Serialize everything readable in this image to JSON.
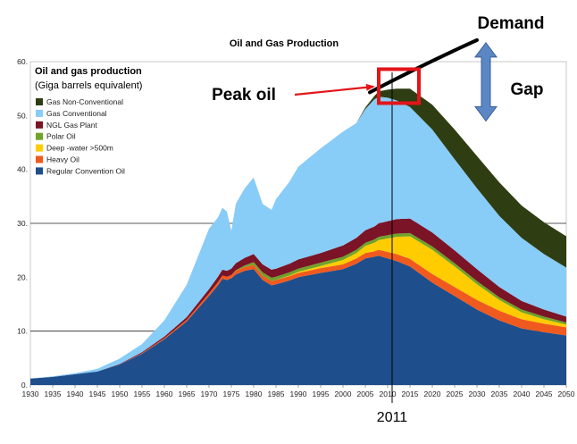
{
  "chart_data": {
    "type": "area",
    "title": "Oil and Gas Production",
    "legend_title": "Oil and gas production",
    "legend_subtitle": "(Giga barrels equivalent)",
    "legend_placement": "top-left",
    "xlim": [
      1930,
      2050
    ],
    "ylim": [
      0,
      60
    ],
    "x_ticks": [
      1930,
      1935,
      1940,
      1945,
      1950,
      1955,
      1960,
      1965,
      1970,
      1975,
      1980,
      1985,
      1990,
      1995,
      2000,
      2005,
      2010,
      2015,
      2020,
      2025,
      2030,
      2035,
      2040,
      2045,
      2050
    ],
    "y_ticks": [
      0,
      10,
      20,
      30,
      40,
      50,
      60
    ],
    "y_tick_labels": [
      "0.",
      "10.",
      "20.",
      "30.",
      "40.",
      "50.",
      "60."
    ],
    "grid_lines_y": [
      10,
      30
    ],
    "x": [
      1930,
      1935,
      1940,
      1945,
      1950,
      1955,
      1960,
      1965,
      1970,
      1972,
      1973,
      1974,
      1975,
      1976,
      1978,
      1980,
      1982,
      1984,
      1985,
      1988,
      1990,
      1995,
      2000,
      2003,
      2005,
      2007,
      2008,
      2010,
      2012,
      2015,
      2020,
      2025,
      2030,
      2035,
      2040,
      2045,
      2050
    ],
    "stack_order": [
      "Regular Convention Oil",
      "Heavy Oil",
      "Deep -water >500m",
      "Polar Oil",
      "NGL Gas Plant",
      "Gas Conventional",
      "Gas Non-Conventional"
    ],
    "series": [
      {
        "name": "Regular Convention Oil",
        "color": "#1f4e8c",
        "values": [
          1.2,
          1.5,
          2.0,
          2.5,
          3.8,
          5.8,
          8.5,
          11.8,
          16.5,
          18.5,
          19.7,
          19.5,
          19.8,
          20.5,
          21.2,
          21.5,
          19.5,
          18.5,
          18.7,
          19.4,
          20.0,
          20.8,
          21.5,
          22.5,
          23.5,
          23.8,
          24.0,
          23.5,
          23.0,
          22.0,
          19.0,
          16.5,
          14.0,
          12.0,
          10.5,
          9.8,
          9.2
        ]
      },
      {
        "name": "Heavy Oil",
        "color": "#f05a1e",
        "values": [
          0,
          0,
          0,
          0,
          0,
          0.1,
          0.2,
          0.3,
          0.5,
          0.6,
          0.6,
          0.6,
          0.6,
          0.7,
          0.7,
          0.8,
          0.8,
          0.8,
          0.8,
          0.8,
          0.8,
          0.9,
          0.9,
          1.0,
          1.0,
          1.0,
          1.1,
          1.2,
          1.3,
          1.4,
          1.6,
          1.7,
          1.8,
          1.8,
          1.7,
          1.6,
          1.5
        ]
      },
      {
        "name": "Deep -water >500m",
        "color": "#ffcc00",
        "values": [
          0,
          0,
          0,
          0,
          0,
          0,
          0,
          0,
          0,
          0,
          0,
          0,
          0,
          0,
          0,
          0,
          0,
          0,
          0,
          0.1,
          0.2,
          0.4,
          0.8,
          1.0,
          1.3,
          1.6,
          1.8,
          2.5,
          3.2,
          4.2,
          4.5,
          3.8,
          2.9,
          2.0,
          1.3,
          0.8,
          0.5
        ]
      },
      {
        "name": "Polar Oil",
        "color": "#6fa32a",
        "values": [
          0,
          0,
          0,
          0,
          0,
          0,
          0,
          0,
          0,
          0,
          0,
          0,
          0,
          0.1,
          0.3,
          0.5,
          0.6,
          0.6,
          0.6,
          0.6,
          0.6,
          0.6,
          0.6,
          0.6,
          0.6,
          0.6,
          0.6,
          0.6,
          0.6,
          0.6,
          0.6,
          0.6,
          0.6,
          0.5,
          0.5,
          0.5,
          0.4
        ]
      },
      {
        "name": "NGL Gas Plant",
        "color": "#7a1426",
        "values": [
          0,
          0,
          0,
          0,
          0.1,
          0.2,
          0.3,
          0.5,
          0.8,
          1.0,
          1.1,
          1.1,
          1.2,
          1.3,
          1.4,
          1.5,
          1.5,
          1.5,
          1.5,
          1.6,
          1.7,
          1.8,
          2.1,
          2.2,
          2.3,
          2.4,
          2.5,
          2.6,
          2.7,
          2.7,
          2.6,
          2.4,
          2.2,
          1.9,
          1.6,
          1.3,
          1.1
        ]
      },
      {
        "name": "Gas Conventional",
        "color": "#88ccf8",
        "values": [
          0,
          0.1,
          0.2,
          0.5,
          1.0,
          1.5,
          3.0,
          6.0,
          11.2,
          11.0,
          11.5,
          11.0,
          7.0,
          11.0,
          12.9,
          14.2,
          11.2,
          11.1,
          12.9,
          15.2,
          17.2,
          19.4,
          21.1,
          21.3,
          22.5,
          23.6,
          23.5,
          22.9,
          22.0,
          20.7,
          19.1,
          16.9,
          15.0,
          13.2,
          11.7,
          10.3,
          9.1
        ]
      },
      {
        "name": "Gas Non-Conventional",
        "color": "#2f3d12",
        "values": [
          0,
          0,
          0,
          0,
          0,
          0,
          0,
          0,
          0,
          0,
          0,
          0,
          0,
          0,
          0,
          0,
          0,
          0,
          0,
          0,
          0,
          0,
          0,
          0,
          0.3,
          0.6,
          1.0,
          1.5,
          2.2,
          3.4,
          4.6,
          5.5,
          6.0,
          6.2,
          6.0,
          5.9,
          5.8
        ]
      }
    ],
    "annotations": {
      "peak_label": "Peak oil",
      "demand_label": "Demand",
      "gap_label": "Gap",
      "year_marker": "2011",
      "year_marker_x": 2011,
      "peak_box_x": [
        2008,
        2017
      ],
      "peak_box_y": [
        52.3,
        58.6
      ],
      "demand_curve": [
        [
          2006,
          54.3
        ],
        [
          2018,
          59.5
        ],
        [
          2030,
          64.0
        ]
      ],
      "gap_arrow_x": 2032,
      "gap_arrow_y": [
        49.0,
        63.5
      ]
    }
  }
}
